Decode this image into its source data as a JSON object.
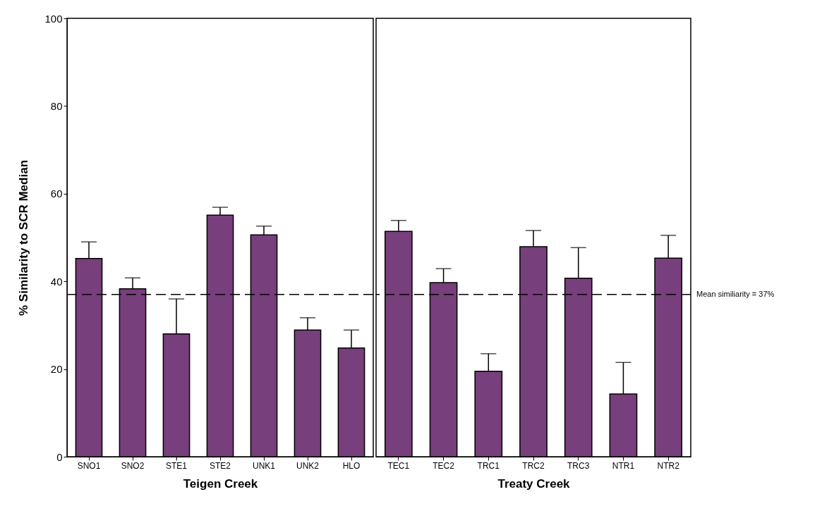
{
  "chart_data": [
    {
      "type": "bar",
      "xlabel": "Teigen Creek",
      "ylabel": "% Similarity to SCR Median",
      "categories": [
        "SNO1",
        "SNO2",
        "STE1",
        "STE2",
        "UNK1",
        "UNK2",
        "HLO"
      ],
      "series": [
        {
          "color": "#773f7b",
          "values": [
            45.2,
            38.3,
            28.0,
            55.1,
            50.6,
            28.9,
            24.8
          ],
          "errors": [
            [
              45.2,
              49.0
            ],
            [
              38.3,
              40.8
            ],
            [
              28.0,
              36.0
            ],
            [
              55.1,
              56.9
            ],
            [
              50.6,
              52.6
            ],
            [
              28.9,
              31.7
            ],
            [
              24.8,
              28.9
            ]
          ]
        }
      ],
      "ylim": [
        0,
        100
      ],
      "yticks": [
        0,
        20,
        40,
        60,
        80,
        100
      ],
      "grid": false,
      "ref_lines": [
        {
          "axis": "y",
          "value": 37,
          "color": "#000000",
          "line_style": "dashed"
        }
      ]
    },
    {
      "type": "bar",
      "xlabel": "Treaty Creek",
      "categories": [
        "TEC1",
        "TEC2",
        "TRC1",
        "TRC2",
        "TRC3",
        "NTR1",
        "NTR2"
      ],
      "series": [
        {
          "color": "#773f7b",
          "values": [
            51.4,
            39.7,
            19.5,
            47.9,
            40.7,
            14.3,
            45.3
          ],
          "errors": [
            [
              51.4,
              53.9
            ],
            [
              39.7,
              42.9
            ],
            [
              19.5,
              23.5
            ],
            [
              47.9,
              51.6
            ],
            [
              40.7,
              47.7
            ],
            [
              14.3,
              21.5
            ],
            [
              45.3,
              50.5
            ]
          ]
        }
      ],
      "ylim": [
        0,
        100
      ],
      "yticks": [
        0,
        20,
        40,
        60,
        80,
        100
      ],
      "grid": false,
      "tick_labels": "x",
      "ref_lines": [
        {
          "axis": "y",
          "value": 37,
          "label": "Mean similiarity = 37%",
          "color": "#000000",
          "line_style": "dashed"
        }
      ]
    }
  ]
}
